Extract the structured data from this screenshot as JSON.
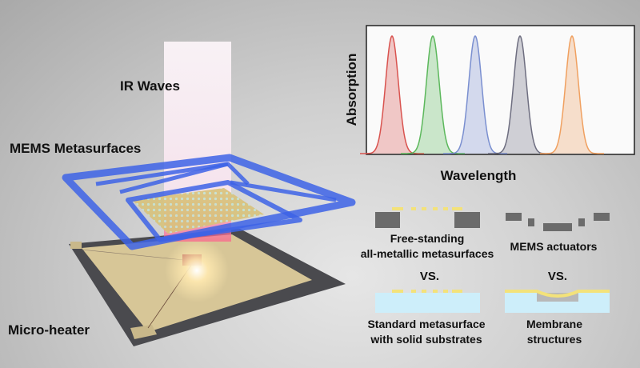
{
  "labels": {
    "ir_waves": "IR Waves",
    "mems_metasurfaces": "MEMS Metasurfaces",
    "micro_heater": "Micro-heater"
  },
  "spectrum": {
    "ylabel": "Absorption",
    "xlabel": "Wavelength",
    "peak_colors": [
      "#d9534f",
      "#5cb85c",
      "#7a8fd0",
      "#6e6e80",
      "#f0a060"
    ]
  },
  "comparison": {
    "free_standing_line1": "Free-standing",
    "free_standing_line2": "all-metallic metasurfaces",
    "mems_actuators": "MEMS actuators",
    "vs_left": "VS.",
    "vs_right": "VS.",
    "standard_line1": "Standard metasurface",
    "standard_line2": "with solid substrates",
    "membrane_line1": "Membrane",
    "membrane_line2": "structures"
  },
  "colors": {
    "frame_blue": "#3d63e6",
    "gold": "#f3e27a",
    "substrate": "#cdeefa",
    "block_gray": "#6b6b6b"
  }
}
